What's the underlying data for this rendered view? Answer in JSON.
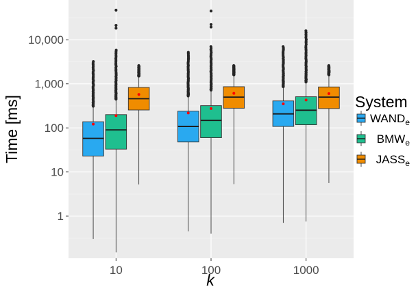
{
  "chart_data": {
    "type": "boxplot",
    "title": "",
    "xlabel": "k",
    "ylabel": "Time [ms]",
    "y_scale": "log10",
    "ylim": [
      0.11,
      80000
    ],
    "yticks": [
      1,
      10,
      100,
      1000,
      10000
    ],
    "ytick_labels": [
      "1",
      "10",
      "100",
      "1,000",
      "10,000"
    ],
    "categories": [
      "10",
      "100",
      "1000"
    ],
    "grid": true,
    "legend": {
      "title": "System",
      "position": "right",
      "entries": [
        {
          "base": "WAND",
          "sub": "e"
        },
        {
          "base": "BMW",
          "sub": "e"
        },
        {
          "base": "JASS",
          "sub": "e"
        }
      ]
    },
    "series": [
      {
        "name": "WANDe",
        "color": "#29a9f0",
        "boxes": [
          {
            "min": 0.3,
            "q1": 23,
            "median": 58,
            "q3": 138,
            "mean": 122,
            "whisker_high": 310,
            "outlier_high": 3200
          },
          {
            "min": 0.45,
            "q1": 48,
            "median": 108,
            "q3": 240,
            "mean": 218,
            "whisker_high": 530,
            "outlier_high": 5200
          },
          {
            "min": 0.7,
            "q1": 108,
            "median": 208,
            "q3": 410,
            "mean": 352,
            "whisker_high": 860,
            "outlier_high": 7000
          }
        ]
      },
      {
        "name": "BMWe",
        "color": "#1fbf8f",
        "boxes": [
          {
            "min": 0.15,
            "q1": 33,
            "median": 90,
            "q3": 200,
            "mean": 190,
            "whisker_high": 450,
            "outlier_high": 47000
          },
          {
            "min": 0.4,
            "q1": 60,
            "median": 148,
            "q3": 320,
            "mean": 275,
            "whisker_high": 720,
            "outlier_high": 45000
          },
          {
            "min": 0.75,
            "q1": 118,
            "median": 252,
            "q3": 510,
            "mean": 430,
            "whisker_high": 1100,
            "outlier_high": 16000
          }
        ]
      },
      {
        "name": "JASSe",
        "color": "#f08c00",
        "boxes": [
          {
            "min": 5.2,
            "q1": 255,
            "median": 460,
            "q3": 830,
            "mean": 575,
            "whisker_high": 1500,
            "outlier_high": 2600
          },
          {
            "min": 5.3,
            "q1": 280,
            "median": 500,
            "q3": 860,
            "mean": 610,
            "whisker_high": 1600,
            "outlier_high": 2600
          },
          {
            "min": 5.6,
            "q1": 275,
            "median": 500,
            "q3": 850,
            "mean": 600,
            "whisker_high": 1600,
            "outlier_high": 2600
          }
        ]
      }
    ]
  }
}
